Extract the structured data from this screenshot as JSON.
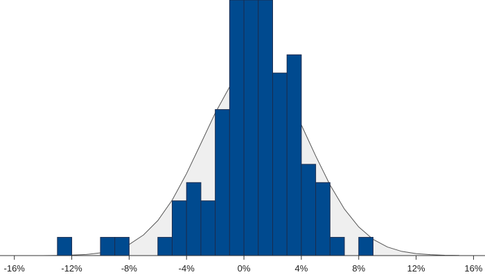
{
  "chart_data": {
    "type": "histogram",
    "bins": [
      -13,
      -12,
      -11,
      -10,
      -9,
      -8,
      -7,
      -6,
      -5,
      -4,
      -3,
      -2,
      -1,
      0,
      1,
      2,
      3,
      4,
      5,
      6,
      7,
      8,
      9
    ],
    "values": [
      1,
      0,
      0,
      1,
      1,
      0,
      0,
      1,
      3,
      4,
      3,
      8,
      14,
      14,
      14,
      10,
      11,
      5,
      4,
      1,
      0,
      1
    ],
    "color": "#004a8f",
    "curve": {
      "color": "#efefef",
      "x": [
        -14,
        -13,
        -12,
        -11,
        -10,
        -9,
        -8,
        -7,
        -6,
        -5,
        -4,
        -3,
        -2,
        -1,
        0,
        1,
        2,
        3,
        4,
        5,
        6,
        7,
        8,
        9,
        10,
        11,
        12,
        13,
        14,
        15
      ],
      "values": [
        0,
        0.01,
        0.03,
        0.06,
        0.15,
        0.31,
        0.61,
        1.13,
        1.92,
        3.04,
        4.49,
        6.14,
        7.81,
        9.24,
        10.16,
        10.38,
        9.87,
        8.71,
        7.16,
        5.46,
        3.87,
        2.55,
        1.57,
        0.89,
        0.47,
        0.23,
        0.11,
        0.05,
        0.02,
        0.01
      ]
    },
    "xlim": [
      -17,
      16.8
    ],
    "xticks": [
      {
        "value": -16,
        "label": "-16%"
      },
      {
        "value": -12,
        "label": "-12%"
      },
      {
        "value": -8,
        "label": "-8%"
      },
      {
        "value": -4,
        "label": "-4%"
      },
      {
        "value": 0,
        "label": "0%"
      },
      {
        "value": 4,
        "label": "4%"
      },
      {
        "value": 8,
        "label": "8%"
      },
      {
        "value": 12,
        "label": "12%"
      },
      {
        "value": 16,
        "label": "16%"
      }
    ],
    "ylim": [
      0,
      14
    ]
  }
}
